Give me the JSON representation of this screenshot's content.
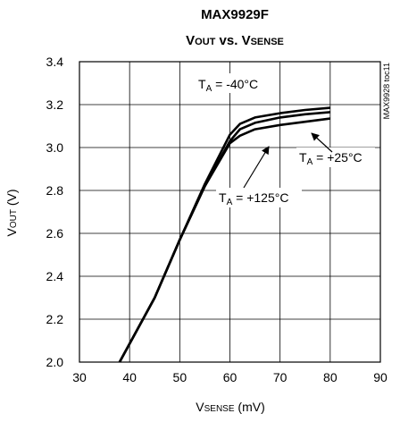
{
  "chart_data": {
    "type": "line",
    "title": "MAX9929F",
    "subtitle": {
      "main": "V",
      "main_sub": "OUT",
      "vs": " vs. ",
      "sense": "V",
      "sense_sub": "SENSE"
    },
    "xlabel": {
      "main": "V",
      "sub": "SENSE",
      "unit": " (mV)"
    },
    "ylabel": {
      "main": "V",
      "sub": "OUT",
      "unit": " (V)"
    },
    "xlim": [
      30,
      90
    ],
    "ylim": [
      2.0,
      3.4
    ],
    "xticks": [
      "30",
      "40",
      "50",
      "60",
      "70",
      "80",
      "90"
    ],
    "yticks": [
      "2.0",
      "2.2",
      "2.4",
      "2.6",
      "2.8",
      "3.0",
      "3.2",
      "3.4"
    ],
    "grid": true,
    "series": [
      {
        "x": [
          38,
          45,
          50,
          55,
          60,
          62,
          65,
          70,
          75,
          80
        ],
        "y": [
          2.0,
          2.3,
          2.57,
          2.83,
          3.06,
          3.11,
          3.14,
          3.16,
          3.175,
          3.185
        ]
      },
      {
        "x": [
          38,
          45,
          50,
          55,
          60,
          62,
          65,
          70,
          75,
          80
        ],
        "y": [
          2.0,
          2.3,
          2.57,
          2.82,
          3.03,
          3.085,
          3.115,
          3.14,
          3.155,
          3.165
        ]
      },
      {
        "x": [
          38,
          45,
          50,
          55,
          60,
          62,
          65,
          70,
          75,
          80
        ],
        "y": [
          2.0,
          2.3,
          2.57,
          2.82,
          3.02,
          3.055,
          3.085,
          3.105,
          3.12,
          3.135
        ]
      }
    ],
    "annotations": [
      {
        "prefix": "T",
        "sub": "A",
        "value": " = -40°C"
      },
      {
        "prefix": "T",
        "sub": "A",
        "value": " = +25°C"
      },
      {
        "prefix": "T",
        "sub": "A",
        "value": " = +125°C"
      }
    ],
    "side_note": "MAX9928 toc11"
  }
}
